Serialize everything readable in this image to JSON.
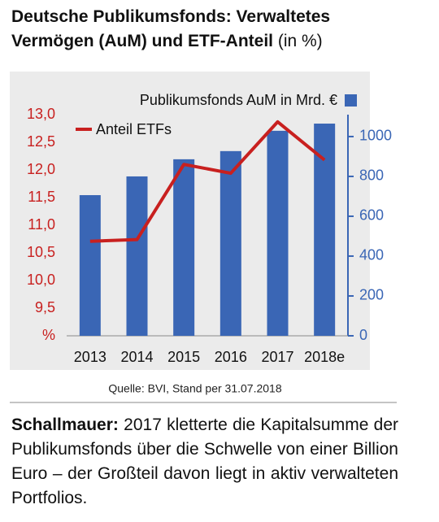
{
  "chart_data": {
    "type": "bar",
    "title": "Deutsche Publikumsfonds: Verwaltetes Vermögen (AuM) und ETF-Anteil",
    "title_unit": "(in %)",
    "categories": [
      "2013",
      "2014",
      "2015",
      "2016",
      "2017",
      "2018e"
    ],
    "series": [
      {
        "name": "Publikumsfonds AuM in Mrd. €",
        "color": "#3a66b5",
        "axis": "y2",
        "values": [
          706,
          800,
          886,
          927,
          1029,
          1065
        ]
      },
      {
        "name": "Anteil ETFs",
        "color": "#c8201f",
        "type": "line",
        "values": [
          10.71,
          10.74,
          12.1,
          11.94,
          12.87,
          12.18
        ]
      }
    ],
    "ylim": [
      9,
      13
    ],
    "yticks": [
      {
        "value": 9,
        "label": "%"
      },
      {
        "value": 9.5,
        "label": "9,5"
      },
      {
        "value": 10,
        "label": "10,0"
      },
      {
        "value": 10.5,
        "label": "10,5"
      },
      {
        "value": 11,
        "label": "11,0"
      },
      {
        "value": 11.5,
        "label": "11,5"
      },
      {
        "value": 12,
        "label": "12,0"
      },
      {
        "value": 12.5,
        "label": "12,5"
      },
      {
        "value": 13,
        "label": "13,0"
      }
    ],
    "y2lim": [
      0,
      1110
    ],
    "y2ticks": [
      0,
      200,
      400,
      600,
      800,
      1000
    ],
    "source": "Quelle: BVI, Stand per 31.07.2018"
  },
  "caption": {
    "lead": "Schallmauer:",
    "text": "2017 kletterte die Kapitalsumme der Publikumsfonds über die Schwelle von einer Billion Euro – der Großteil davon liegt in aktiv verwalteten Portfolios."
  }
}
